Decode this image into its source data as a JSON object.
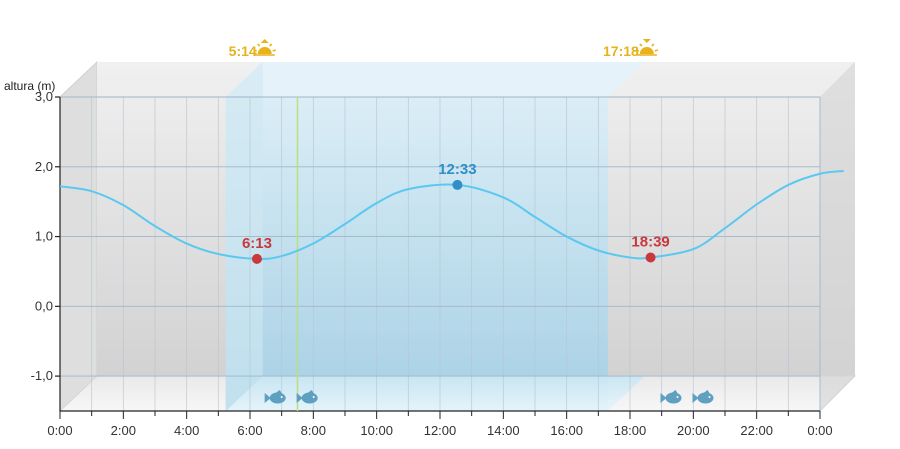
{
  "chart_data": {
    "type": "line",
    "ylabel": "altura (m)",
    "ylim": [
      -1.5,
      3.0
    ],
    "y_ticks": [
      {
        "value": 3.0,
        "label": "3,0"
      },
      {
        "value": 2.0,
        "label": "2,0"
      },
      {
        "value": 1.0,
        "label": "1,0"
      },
      {
        "value": 0.0,
        "label": "0,0"
      },
      {
        "value": -1.0,
        "label": "-1,0"
      }
    ],
    "x_ticks": [
      {
        "value": 0,
        "label": "0:00"
      },
      {
        "value": 2,
        "label": "2:00"
      },
      {
        "value": 4,
        "label": "4:00"
      },
      {
        "value": 6,
        "label": "6:00"
      },
      {
        "value": 8,
        "label": "8:00"
      },
      {
        "value": 10,
        "label": "10:00"
      },
      {
        "value": 12,
        "label": "12:00"
      },
      {
        "value": 14,
        "label": "14:00"
      },
      {
        "value": 16,
        "label": "16:00"
      },
      {
        "value": 18,
        "label": "18:00"
      },
      {
        "value": 20,
        "label": "20:00"
      },
      {
        "value": 22,
        "label": "22:00"
      },
      {
        "value": 24,
        "label": "0:00"
      }
    ],
    "xlim": [
      0,
      24
    ],
    "grid": true,
    "line_color": "#5bc8f0",
    "series": [
      {
        "x": [
          0,
          1,
          2,
          3,
          4,
          5,
          6.22,
          7,
          8,
          9,
          10,
          11,
          12.55,
          14,
          15,
          16,
          17,
          18,
          18.65,
          20,
          21,
          22,
          23,
          24,
          24.75
        ],
        "values": [
          1.72,
          1.65,
          1.45,
          1.15,
          0.9,
          0.75,
          0.68,
          0.72,
          0.9,
          1.18,
          1.48,
          1.68,
          1.74,
          1.56,
          1.28,
          1.0,
          0.8,
          0.7,
          0.7,
          0.82,
          1.12,
          1.46,
          1.74,
          1.9,
          1.94
        ]
      }
    ],
    "extremes": [
      {
        "time": 6.22,
        "value": 0.68,
        "label": "6:13",
        "color": "#c8383c"
      },
      {
        "time": 12.55,
        "value": 1.74,
        "label": "12:33",
        "color": "#2f8fc6"
      },
      {
        "time": 18.65,
        "value": 0.7,
        "label": "18:39",
        "color": "#c8383c"
      }
    ],
    "sunrise": {
      "time": 5.233,
      "label": "5:14"
    },
    "sunset": {
      "time": 17.3,
      "label": "17:18"
    },
    "now_time": 7.5,
    "fishing_periods": [
      7,
      19.5
    ],
    "colors": {
      "sun": "#e8b21a",
      "day_band": "#bfe3f3",
      "night": "#d9d9d9",
      "fish": "#5f9fc0"
    }
  }
}
